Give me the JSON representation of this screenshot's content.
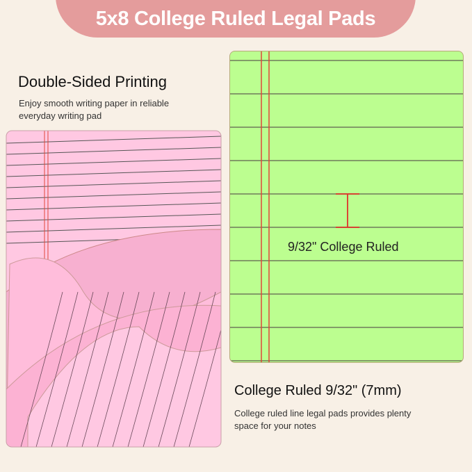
{
  "title": "5x8 College Ruled Legal Pads",
  "left": {
    "heading": "Double-Sided Printing",
    "desc_line1": "Enjoy smooth writing paper in reliable",
    "desc_line2": "everyday writing pad"
  },
  "right": {
    "heading": "College Ruled 9/32\" (7mm)",
    "desc_line1": "College ruled line legal pads provides plenty",
    "desc_line2": "space for your notes"
  },
  "annotation": "9/32\" College Ruled",
  "colors": {
    "background": "#f8f0e6",
    "title_pill": "#e49c9c",
    "green_paper": "#bcfe90",
    "pink_paper": "#ffc8e2",
    "margin_line": "#e0463a"
  }
}
